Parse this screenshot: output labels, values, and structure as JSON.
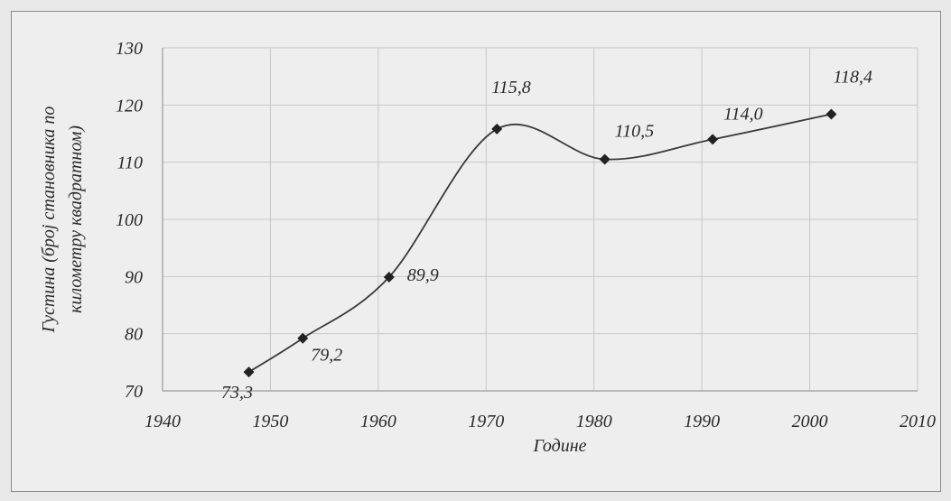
{
  "chart_data": {
    "type": "line",
    "x": [
      1948,
      1953,
      1961,
      1971,
      1981,
      1991,
      2002
    ],
    "series": [
      {
        "values": [
          73.3,
          79.2,
          89.9,
          115.8,
          110.5,
          114.0,
          118.4
        ],
        "labels": [
          "73,3",
          "79,2",
          "89,9",
          "115,8",
          "110,5",
          "114,0",
          "118,4"
        ]
      }
    ],
    "xlabel": "Године",
    "ylabel_line1": "Густина (број становника по",
    "ylabel_line2": "километру квадратном)",
    "xlim": [
      1940,
      2010
    ],
    "ylim": [
      70,
      130
    ],
    "xticks": [
      1940,
      1950,
      1960,
      1970,
      1980,
      1990,
      2000,
      2010
    ],
    "yticks": [
      70,
      80,
      90,
      100,
      110,
      120,
      130
    ],
    "grid": true,
    "smooth": true,
    "marker": "diamond",
    "colors": {
      "line": "#3a3a3a",
      "grid": "#c8c8c8",
      "axis": "#9a9a9a",
      "text": "#2a2a2a"
    }
  }
}
